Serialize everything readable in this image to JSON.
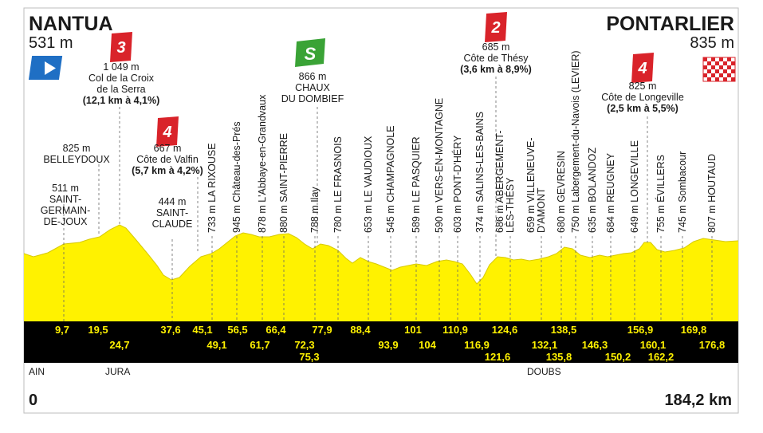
{
  "start": {
    "name": "NANTUA",
    "alt": "531 m"
  },
  "finish": {
    "name": "PONTARLIER",
    "alt": "835 m"
  },
  "distance_start": "0",
  "distance_total": "184,2 km",
  "regions": [
    {
      "label": "AIN",
      "km": 0
    },
    {
      "label": "JURA",
      "km": 17
    },
    {
      "label": "DOUBS",
      "km": 119
    }
  ],
  "climbs": [
    {
      "cat": "3",
      "color": "#d9232a",
      "lines": [
        "1 049 m",
        "Col de la Croix",
        "de la Serra"
      ],
      "detail": "(12,1 km à 4,1%)"
    },
    {
      "cat": "4",
      "color": "#d9232a",
      "lines": [
        "667 m",
        "Côte de Valfin"
      ],
      "detail": "(5,7 km à 4,2%)"
    },
    {
      "cat": "2",
      "color": "#d9232a",
      "lines": [
        "685 m",
        "Côte de Thésy"
      ],
      "detail": "(3,6 km à 8,9%)"
    },
    {
      "cat": "4",
      "color": "#d9232a",
      "lines": [
        "825 m",
        "Côte de Longeville"
      ],
      "detail": "(2,5 km à 5,5%)"
    }
  ],
  "sprint": {
    "label": "S",
    "color": "#3aa336",
    "lines": [
      "866 m",
      "CHAUX",
      "DU DOMBIEF"
    ]
  },
  "places_horizontal": [
    {
      "lines": [
        "825 m",
        "BELLEYDOUX"
      ]
    },
    {
      "lines": [
        "511 m",
        "SAINT-",
        "GERMAIN-",
        "DE-JOUX"
      ]
    },
    {
      "lines": [
        "444 m",
        "SAINT-",
        "CLAUDE"
      ]
    }
  ],
  "places_vertical": [
    {
      "lines": [
        "733 m LA RIXOUSE"
      ]
    },
    {
      "lines": [
        "945 m Château-des-Prés"
      ]
    },
    {
      "lines": [
        "878 m L'Abbaye-en-Grandvaux"
      ]
    },
    {
      "lines": [
        "880 m SAINT-PIERRE"
      ]
    },
    {
      "lines": [
        "788 m Ilay"
      ]
    },
    {
      "lines": [
        "780 m LE FRASNOIS"
      ]
    },
    {
      "lines": [
        "653 m LE VAUDIOUX"
      ]
    },
    {
      "lines": [
        "545 m CHAMPAGNOLE"
      ]
    },
    {
      "lines": [
        "589 m LE PASQUIER"
      ]
    },
    {
      "lines": [
        "590 m VERS-EN-MONTAGNE"
      ]
    },
    {
      "lines": [
        "603 m PONT-D'HÉRY"
      ]
    },
    {
      "lines": [
        "374 m SALINS-LES-BAINS"
      ]
    },
    {
      "lines": [
        "686 m ABERGEMENT-",
        "LÈS-THÉSY"
      ]
    },
    {
      "lines": [
        "659 m VILLENEUVE-",
        "D'AMONT"
      ]
    },
    {
      "lines": [
        "680 m GEVRESIN"
      ]
    },
    {
      "lines": [
        "750 m Labergement-du-Navois (LEVIER)"
      ]
    },
    {
      "lines": [
        "635 m BOLANDOZ"
      ]
    },
    {
      "lines": [
        "684 m REUGNEY"
      ]
    },
    {
      "lines": [
        "649 m LONGEVILLE"
      ]
    },
    {
      "lines": [
        "755 m ÉVILLERS"
      ]
    },
    {
      "lines": [
        "745 m Sombacour"
      ]
    },
    {
      "lines": [
        "807 m HOUTAUD"
      ]
    }
  ],
  "km_top": [
    "9,7",
    "19,5",
    "37,6",
    "45,1",
    "56,5",
    "66,4",
    "77,9",
    "88,4",
    "101",
    "110,9",
    "124,6",
    "138,5",
    "156,9",
    "169,8"
  ],
  "km_mid": [
    "24,7",
    "49,1",
    "61,7",
    "72,3",
    "93,9",
    "104",
    "116,9",
    "132,1",
    "146,3",
    "160,1",
    "176,8"
  ],
  "km_low": [
    "75,3",
    "121,6",
    "135,8",
    "150,2",
    "162,2"
  ],
  "colors": {
    "profile": "#fff200",
    "band": "#000000",
    "km_text": "#fff200",
    "text": "#1a1a1a"
  }
}
